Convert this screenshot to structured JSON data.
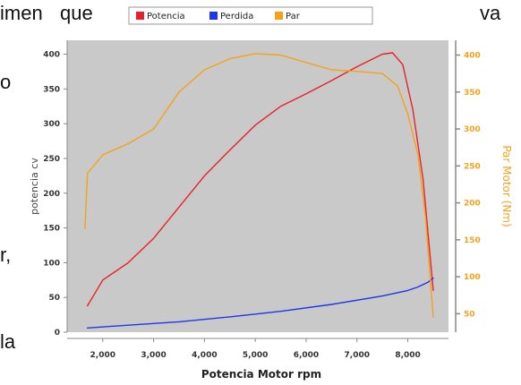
{
  "background_text": {
    "w1": "imen",
    "w2": "que",
    "w3": "va",
    "w4": "o",
    "w5": "r,",
    "w6": "la"
  },
  "chart_data": {
    "type": "line",
    "title": "",
    "xlabel": "Potencia Motor rpm",
    "ylabel_left": "potencia cv",
    "ylabel_right": "Par Motor (Nm)",
    "xlim": [
      1300,
      8800
    ],
    "ylim_left": [
      0,
      420
    ],
    "ylim_right": [
      25,
      420
    ],
    "x_ticks": [
      2000,
      3000,
      4000,
      5000,
      6000,
      7000,
      8000
    ],
    "x_tick_labels": [
      "2,000",
      "3,000",
      "4,000",
      "5,000",
      "6,000",
      "7,000",
      "8,000"
    ],
    "y_left_ticks": [
      0,
      50,
      100,
      150,
      200,
      250,
      300,
      350,
      400
    ],
    "y_left_tick_labels": [
      "0",
      "50",
      "100",
      "150",
      "200",
      "250",
      "300",
      "350",
      "400"
    ],
    "y_right_ticks": [
      50,
      100,
      150,
      200,
      250,
      300,
      350,
      400
    ],
    "y_right_tick_labels": [
      "50",
      "100",
      "150",
      "200",
      "250",
      "300",
      "350",
      "400"
    ],
    "grid": false,
    "legend_position": "top",
    "series": [
      {
        "name": "Potencia",
        "axis": "left",
        "color": "#e8202a",
        "x": [
          1700,
          2000,
          2500,
          3000,
          3500,
          4000,
          4500,
          5000,
          5500,
          6000,
          6500,
          7000,
          7500,
          7700,
          7900,
          8100,
          8300,
          8500
        ],
        "y": [
          38,
          75,
          100,
          135,
          180,
          225,
          262,
          298,
          325,
          343,
          362,
          382,
          400,
          402,
          385,
          320,
          220,
          60
        ]
      },
      {
        "name": "Perdida",
        "axis": "left",
        "color": "#1f35e8",
        "x": [
          1700,
          2500,
          3500,
          4500,
          5500,
          6500,
          7500,
          8000,
          8200,
          8400,
          8500
        ],
        "y": [
          6,
          10,
          15,
          22,
          30,
          40,
          52,
          60,
          65,
          72,
          78
        ]
      },
      {
        "name": "Par",
        "axis": "right",
        "color": "#f5a11a",
        "x": [
          1650,
          1700,
          2000,
          2500,
          3000,
          3500,
          4000,
          4500,
          5000,
          5500,
          6000,
          6500,
          7000,
          7500,
          7800,
          8000,
          8200,
          8350,
          8500
        ],
        "y": [
          165,
          240,
          265,
          280,
          300,
          350,
          380,
          395,
          402,
          400,
          390,
          380,
          378,
          375,
          358,
          320,
          265,
          180,
          45
        ]
      }
    ]
  }
}
